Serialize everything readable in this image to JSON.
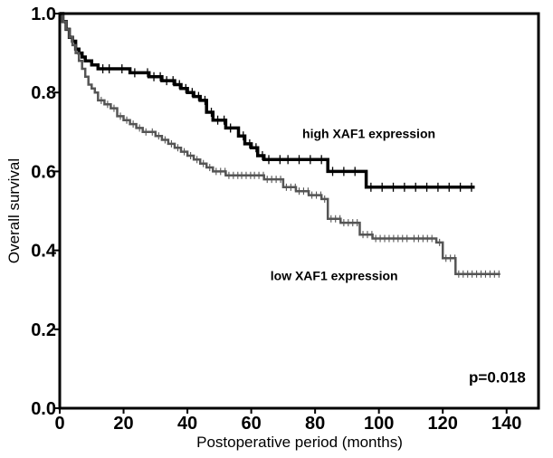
{
  "chart_data": {
    "type": "line",
    "xlabel": "Postoperative period (months)",
    "ylabel": "Overall survival",
    "xlim": [
      0,
      150
    ],
    "ylim": [
      0.0,
      1.0
    ],
    "x_ticks": [
      "0",
      "20",
      "40",
      "60",
      "80",
      "100",
      "120",
      "140"
    ],
    "y_ticks": [
      "0.0",
      "0.2",
      "0.4",
      "0.6",
      "0.8",
      "1.0"
    ],
    "grid": false,
    "series": [
      {
        "name": "high XAF1 expression",
        "color": "#000000",
        "style": "solid",
        "x": [
          0,
          1,
          2,
          3,
          4,
          5,
          6,
          7,
          8,
          9,
          10,
          11,
          12,
          14,
          18,
          22,
          26,
          28,
          30,
          32,
          34,
          36,
          38,
          40,
          42,
          44,
          46,
          48,
          50,
          52,
          56,
          58,
          60,
          62,
          64,
          70,
          84,
          96,
          130
        ],
        "values": [
          1.0,
          0.98,
          0.96,
          0.94,
          0.93,
          0.91,
          0.9,
          0.89,
          0.88,
          0.88,
          0.87,
          0.87,
          0.86,
          0.86,
          0.86,
          0.85,
          0.85,
          0.84,
          0.84,
          0.83,
          0.83,
          0.82,
          0.81,
          0.8,
          0.79,
          0.78,
          0.75,
          0.73,
          0.73,
          0.71,
          0.69,
          0.67,
          0.66,
          0.64,
          0.63,
          0.63,
          0.6,
          0.56,
          0.56
        ]
      },
      {
        "name": "low XAF1 expression",
        "color": "#555555",
        "style": "censored",
        "x": [
          0,
          1,
          2,
          3,
          4,
          5,
          6,
          7,
          8,
          9,
          10,
          11,
          12,
          14,
          16,
          18,
          20,
          22,
          24,
          26,
          28,
          30,
          32,
          34,
          36,
          38,
          40,
          42,
          44,
          46,
          48,
          52,
          56,
          60,
          64,
          70,
          74,
          78,
          82,
          84,
          88,
          94,
          98,
          110,
          118,
          120,
          124,
          138
        ],
        "values": [
          1.0,
          0.98,
          0.96,
          0.94,
          0.92,
          0.9,
          0.88,
          0.86,
          0.84,
          0.82,
          0.81,
          0.8,
          0.78,
          0.77,
          0.76,
          0.74,
          0.73,
          0.72,
          0.71,
          0.7,
          0.7,
          0.69,
          0.68,
          0.67,
          0.66,
          0.65,
          0.64,
          0.63,
          0.62,
          0.61,
          0.6,
          0.59,
          0.59,
          0.59,
          0.58,
          0.56,
          0.55,
          0.54,
          0.53,
          0.48,
          0.47,
          0.44,
          0.43,
          0.43,
          0.42,
          0.38,
          0.34,
          0.34
        ]
      }
    ],
    "annotations": [
      {
        "text": "high XAF1 expression",
        "x": 76,
        "y": 0.685
      },
      {
        "text": "low XAF1 expression",
        "x": 66,
        "y": 0.325
      },
      {
        "text": "p=0.018",
        "x": 146,
        "y": 0.065
      }
    ]
  }
}
